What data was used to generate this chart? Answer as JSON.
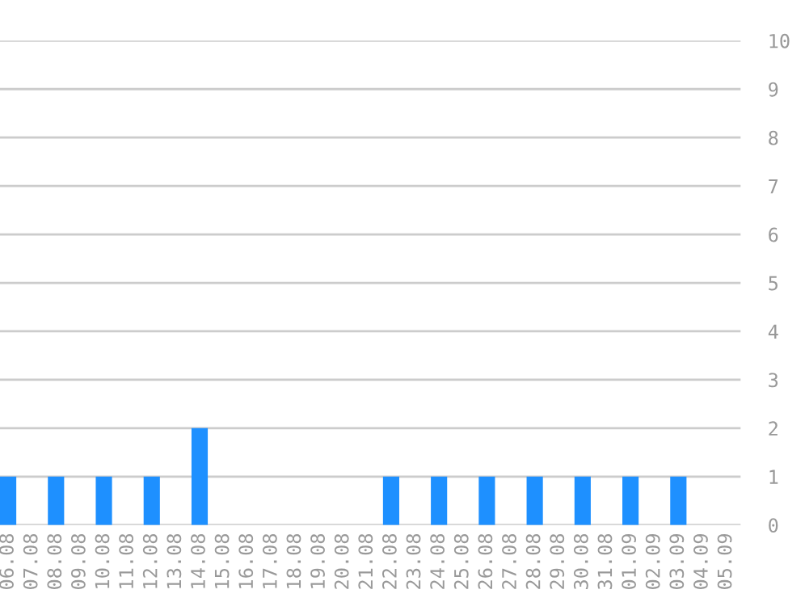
{
  "chart_data": {
    "type": "bar",
    "categories": [
      "06.08",
      "07.08",
      "08.08",
      "09.08",
      "10.08",
      "11.08",
      "12.08",
      "13.08",
      "14.08",
      "15.08",
      "16.08",
      "17.08",
      "18.08",
      "19.08",
      "20.08",
      "21.08",
      "22.08",
      "23.08",
      "24.08",
      "25.08",
      "26.08",
      "27.08",
      "28.08",
      "29.08",
      "30.08",
      "31.08",
      "01.09",
      "02.09",
      "03.09",
      "04.09",
      "05.09"
    ],
    "values": [
      1,
      0,
      1,
      0,
      1,
      0,
      1,
      0,
      2,
      0,
      0,
      0,
      0,
      0,
      0,
      0,
      1,
      0,
      1,
      0,
      1,
      0,
      1,
      0,
      1,
      0,
      1,
      0,
      1,
      0,
      0
    ],
    "color": "#1e90ff",
    "ylim": [
      0,
      10
    ],
    "yticks": [
      0,
      1,
      2,
      3,
      4,
      5,
      6,
      7,
      8,
      9,
      10
    ],
    "grid": "y"
  }
}
